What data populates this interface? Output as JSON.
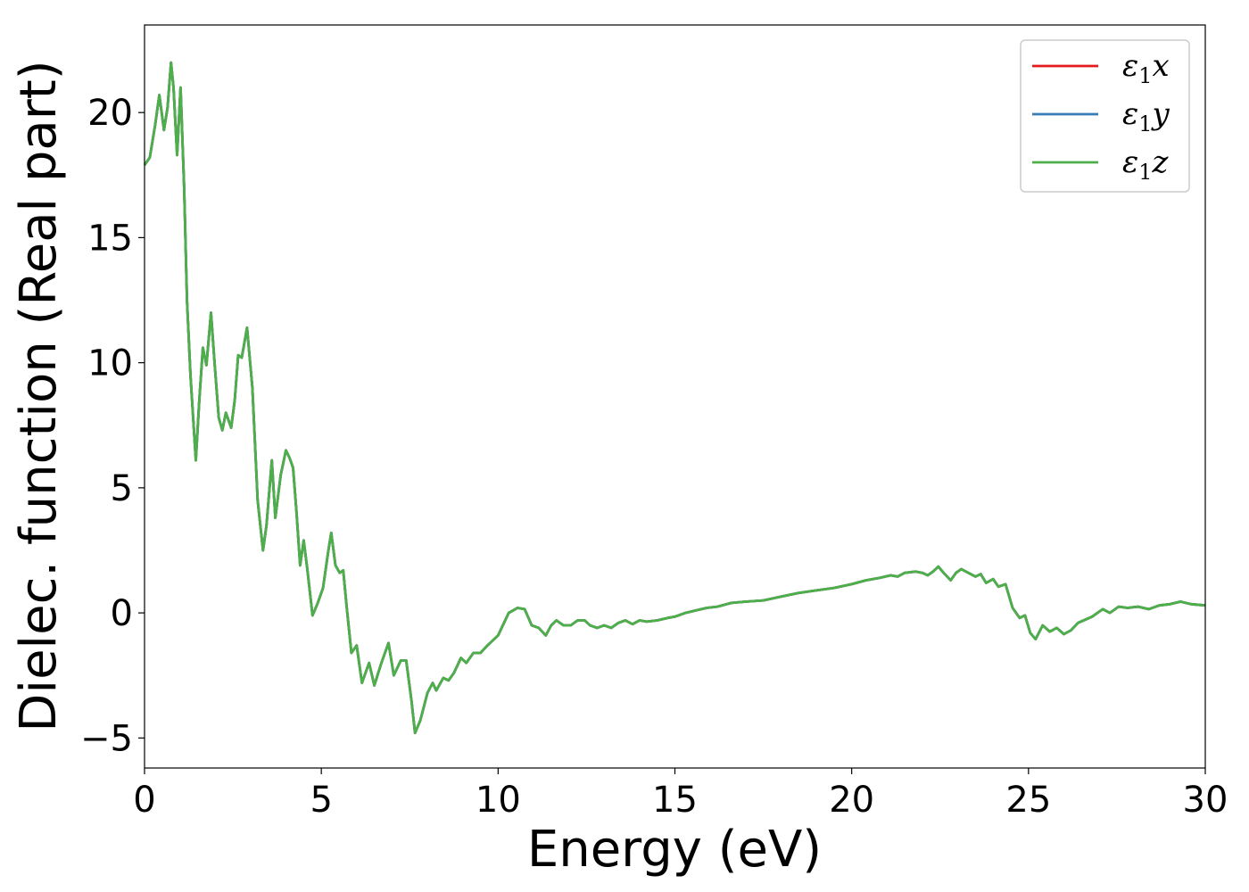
{
  "chart_data": {
    "type": "line",
    "title": "",
    "xlabel": "Energy (eV)",
    "ylabel": "Dielec. function (Real part)",
    "xlim": [
      0,
      30
    ],
    "ylim": [
      -6.2,
      23.5
    ],
    "xticks": [
      0,
      5,
      10,
      15,
      20,
      25,
      30
    ],
    "xtick_labels": [
      "0",
      "5",
      "10",
      "15",
      "20",
      "25",
      "30"
    ],
    "yticks": [
      -5,
      0,
      5,
      10,
      15,
      20
    ],
    "ytick_labels": [
      "−5",
      "0",
      "5",
      "10",
      "15",
      "20"
    ],
    "grid": false,
    "legend_position": "top-right",
    "series": [
      {
        "name": "ε₁x",
        "legend_main": "ε",
        "legend_sub": "1",
        "legend_var": "x",
        "color": "#e41a1c",
        "points": [
          [
            0,
            17.9
          ],
          [
            0.15,
            18.2
          ],
          [
            0.3,
            19.5
          ],
          [
            0.42,
            20.7
          ],
          [
            0.55,
            19.3
          ],
          [
            0.65,
            20.2
          ],
          [
            0.75,
            22.0
          ],
          [
            0.82,
            21.0
          ],
          [
            0.92,
            18.3
          ],
          [
            1.02,
            21.0
          ],
          [
            1.12,
            17.0
          ],
          [
            1.2,
            12.5
          ],
          [
            1.3,
            9.5
          ],
          [
            1.45,
            6.1
          ],
          [
            1.55,
            8.5
          ],
          [
            1.65,
            10.6
          ],
          [
            1.75,
            9.9
          ],
          [
            1.88,
            12.0
          ],
          [
            1.98,
            10.0
          ],
          [
            2.1,
            7.8
          ],
          [
            2.2,
            7.3
          ],
          [
            2.3,
            8.0
          ],
          [
            2.45,
            7.4
          ],
          [
            2.55,
            8.5
          ],
          [
            2.65,
            10.3
          ],
          [
            2.75,
            10.2
          ],
          [
            2.9,
            11.4
          ],
          [
            3.05,
            9.0
          ],
          [
            3.2,
            4.5
          ],
          [
            3.35,
            2.5
          ],
          [
            3.45,
            3.5
          ],
          [
            3.6,
            6.1
          ],
          [
            3.7,
            3.8
          ],
          [
            3.85,
            5.5
          ],
          [
            4.0,
            6.5
          ],
          [
            4.1,
            6.2
          ],
          [
            4.2,
            5.8
          ],
          [
            4.3,
            4.0
          ],
          [
            4.4,
            1.9
          ],
          [
            4.5,
            2.9
          ],
          [
            4.6,
            1.8
          ],
          [
            4.75,
            -0.1
          ],
          [
            4.9,
            0.4
          ],
          [
            5.05,
            1.0
          ],
          [
            5.2,
            2.5
          ],
          [
            5.28,
            3.2
          ],
          [
            5.4,
            1.9
          ],
          [
            5.52,
            1.6
          ],
          [
            5.62,
            1.7
          ],
          [
            5.72,
            0.2
          ],
          [
            5.85,
            -1.6
          ],
          [
            6.0,
            -1.3
          ],
          [
            6.15,
            -2.8
          ],
          [
            6.35,
            -2.0
          ],
          [
            6.5,
            -2.9
          ],
          [
            6.7,
            -2.0
          ],
          [
            6.9,
            -1.2
          ],
          [
            7.05,
            -2.5
          ],
          [
            7.25,
            -1.9
          ],
          [
            7.4,
            -1.9
          ],
          [
            7.55,
            -3.5
          ],
          [
            7.65,
            -4.8
          ],
          [
            7.8,
            -4.3
          ],
          [
            8.0,
            -3.2
          ],
          [
            8.15,
            -2.8
          ],
          [
            8.25,
            -3.1
          ],
          [
            8.45,
            -2.6
          ],
          [
            8.6,
            -2.7
          ],
          [
            8.75,
            -2.4
          ],
          [
            8.95,
            -1.8
          ],
          [
            9.1,
            -2.0
          ],
          [
            9.3,
            -1.6
          ],
          [
            9.5,
            -1.6
          ],
          [
            9.7,
            -1.3
          ],
          [
            10.0,
            -0.9
          ],
          [
            10.3,
            0.0
          ],
          [
            10.55,
            0.2
          ],
          [
            10.75,
            0.15
          ],
          [
            10.95,
            -0.5
          ],
          [
            11.15,
            -0.6
          ],
          [
            11.35,
            -0.9
          ],
          [
            11.5,
            -0.5
          ],
          [
            11.65,
            -0.3
          ],
          [
            11.85,
            -0.5
          ],
          [
            12.05,
            -0.5
          ],
          [
            12.25,
            -0.3
          ],
          [
            12.45,
            -0.3
          ],
          [
            12.6,
            -0.5
          ],
          [
            12.8,
            -0.6
          ],
          [
            13.0,
            -0.5
          ],
          [
            13.2,
            -0.6
          ],
          [
            13.4,
            -0.4
          ],
          [
            13.6,
            -0.3
          ],
          [
            13.8,
            -0.45
          ],
          [
            14.0,
            -0.3
          ],
          [
            14.2,
            -0.35
          ],
          [
            14.5,
            -0.3
          ],
          [
            14.8,
            -0.2
          ],
          [
            15.0,
            -0.15
          ],
          [
            15.3,
            0.0
          ],
          [
            15.6,
            0.1
          ],
          [
            15.9,
            0.2
          ],
          [
            16.2,
            0.25
          ],
          [
            16.6,
            0.4
          ],
          [
            17.0,
            0.45
          ],
          [
            17.5,
            0.5
          ],
          [
            18.0,
            0.65
          ],
          [
            18.5,
            0.8
          ],
          [
            19.0,
            0.9
          ],
          [
            19.5,
            1.0
          ],
          [
            20.0,
            1.15
          ],
          [
            20.4,
            1.3
          ],
          [
            20.8,
            1.4
          ],
          [
            21.1,
            1.5
          ],
          [
            21.3,
            1.45
          ],
          [
            21.5,
            1.6
          ],
          [
            21.8,
            1.65
          ],
          [
            22.0,
            1.6
          ],
          [
            22.15,
            1.5
          ],
          [
            22.3,
            1.65
          ],
          [
            22.45,
            1.85
          ],
          [
            22.6,
            1.6
          ],
          [
            22.8,
            1.3
          ],
          [
            22.95,
            1.6
          ],
          [
            23.1,
            1.75
          ],
          [
            23.3,
            1.6
          ],
          [
            23.5,
            1.45
          ],
          [
            23.65,
            1.55
          ],
          [
            23.8,
            1.2
          ],
          [
            24.0,
            1.35
          ],
          [
            24.15,
            1.05
          ],
          [
            24.35,
            1.15
          ],
          [
            24.55,
            0.2
          ],
          [
            24.75,
            -0.2
          ],
          [
            24.9,
            -0.1
          ],
          [
            25.05,
            -0.8
          ],
          [
            25.2,
            -1.05
          ],
          [
            25.4,
            -0.5
          ],
          [
            25.6,
            -0.75
          ],
          [
            25.8,
            -0.6
          ],
          [
            26.0,
            -0.85
          ],
          [
            26.2,
            -0.7
          ],
          [
            26.4,
            -0.4
          ],
          [
            26.8,
            -0.15
          ],
          [
            27.1,
            0.15
          ],
          [
            27.3,
            0.0
          ],
          [
            27.55,
            0.25
          ],
          [
            27.8,
            0.2
          ],
          [
            28.1,
            0.25
          ],
          [
            28.4,
            0.15
          ],
          [
            28.7,
            0.3
          ],
          [
            29.0,
            0.35
          ],
          [
            29.3,
            0.45
          ],
          [
            29.6,
            0.35
          ],
          [
            30.0,
            0.3
          ]
        ]
      },
      {
        "name": "ε₁y",
        "legend_main": "ε",
        "legend_sub": "1",
        "legend_var": "y",
        "color": "#377eb8",
        "same_as": 0
      },
      {
        "name": "ε₁z",
        "legend_main": "ε",
        "legend_sub": "1",
        "legend_var": "z",
        "color": "#4daf4a",
        "same_as": 0
      }
    ]
  }
}
